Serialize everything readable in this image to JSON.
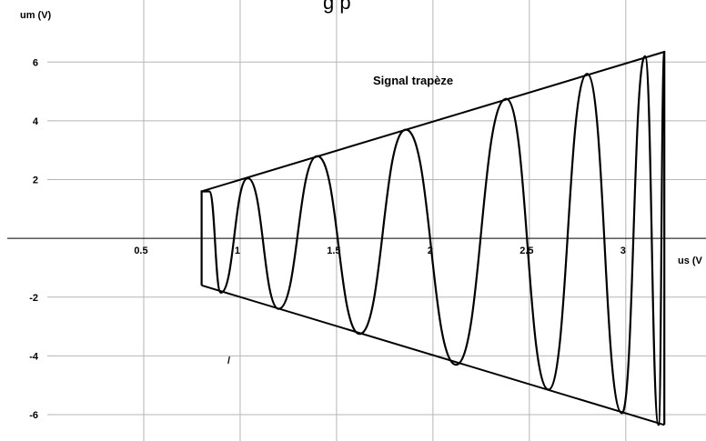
{
  "chart_data": {
    "type": "line",
    "title_fragment": "g   p",
    "xlabel": "us (V",
    "ylabel": "um (V)",
    "xlim": [
      0,
      3.35
    ],
    "ylim": [
      -6.65,
      7.0
    ],
    "x_ticks": [
      0.5,
      1,
      1.5,
      2,
      2.5,
      3
    ],
    "x_tick_labels": [
      "0.5",
      "1",
      "1.5",
      "2",
      "2.5",
      "3"
    ],
    "y_ticks": [
      -6,
      -4,
      -2,
      2,
      4,
      6
    ],
    "y_tick_labels": [
      "-6",
      "-4",
      "-2",
      "2",
      "4",
      "6"
    ],
    "grid": true,
    "annotation": "Signal trapèze",
    "stray_mark": "/",
    "envelope": {
      "upper": [
        [
          0.8,
          1.6
        ],
        [
          3.2,
          6.35
        ]
      ],
      "lower": [
        [
          0.8,
          -1.6
        ],
        [
          3.2,
          -6.35
        ]
      ]
    },
    "series": [
      {
        "points": [
          [
            0.8,
            -1.6
          ],
          [
            0.8,
            1.6
          ],
          [
            0.84,
            1.6
          ],
          [
            0.9,
            -1.85
          ],
          [
            1.04,
            2.05
          ],
          [
            1.2,
            -2.4
          ],
          [
            1.4,
            2.8
          ],
          [
            1.62,
            -3.25
          ],
          [
            1.86,
            3.7
          ],
          [
            2.12,
            -4.3
          ],
          [
            2.38,
            4.75
          ],
          [
            2.6,
            -5.15
          ],
          [
            2.8,
            5.6
          ],
          [
            2.98,
            -5.95
          ],
          [
            3.1,
            6.2
          ],
          [
            3.17,
            -6.35
          ],
          [
            3.2,
            6.35
          ]
        ]
      }
    ]
  }
}
